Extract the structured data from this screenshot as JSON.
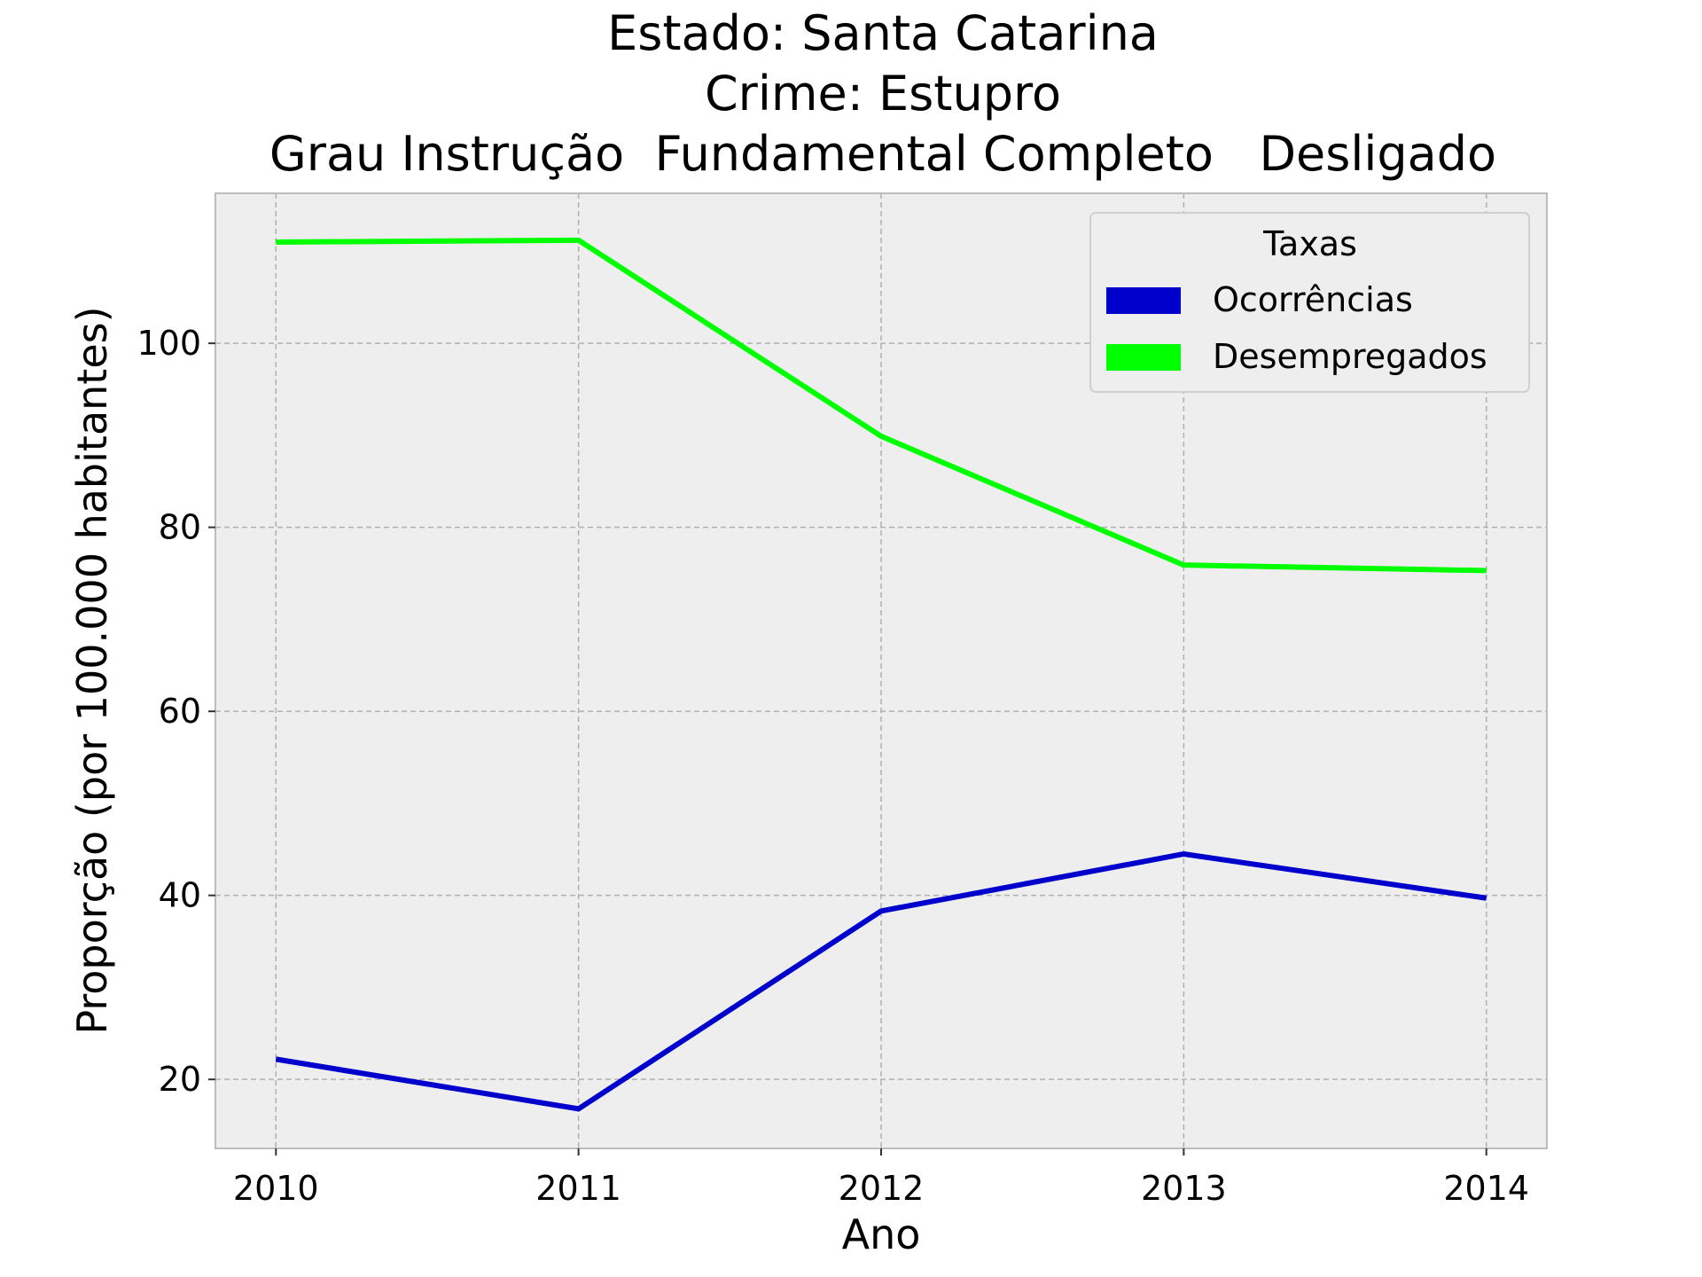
{
  "chart_data": {
    "type": "line",
    "title_lines": [
      "Estado: Santa Catarina",
      "Crime: Estupro",
      "Grau Instrução  Fundamental Completo   Desligado"
    ],
    "xlabel": "Ano",
    "ylabel": "Proporção (por 100.000 habitantes)",
    "x": [
      2010,
      2011,
      2012,
      2013,
      2014
    ],
    "x_tick_labels": [
      "2010",
      "2011",
      "2012",
      "2013",
      "2014"
    ],
    "y_ticks": [
      20,
      40,
      60,
      80,
      100
    ],
    "y_tick_labels": [
      "20",
      "40",
      "60",
      "80",
      "100"
    ],
    "xlim": [
      2009.8,
      2014.2
    ],
    "ylim": [
      12.5,
      116.3
    ],
    "grid": true,
    "legend": {
      "title": "Taxas",
      "placement": "top-right"
    },
    "series": [
      {
        "name": "Ocorrências",
        "color": "#0000cd",
        "values": [
          22.2,
          16.8,
          38.3,
          44.5,
          39.7
        ]
      },
      {
        "name": "Desempregados",
        "color": "#00ff00",
        "values": [
          111.0,
          111.2,
          89.9,
          75.9,
          75.3
        ]
      }
    ],
    "plot_background": "#eeeeee",
    "frame_color": "#bcbcbc"
  }
}
